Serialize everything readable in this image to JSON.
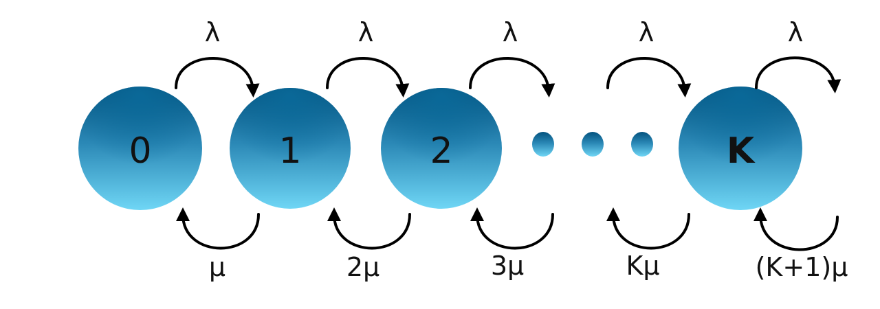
{
  "states": [
    {
      "id": "s0",
      "label": "0"
    },
    {
      "id": "s1",
      "label": "1"
    },
    {
      "id": "s2",
      "label": "2"
    },
    {
      "id": "sK",
      "label": "K"
    }
  ],
  "ellipsis": [
    "•",
    "•",
    "•"
  ],
  "arrival_rates": [
    "λ",
    "λ",
    "λ",
    "λ",
    "λ"
  ],
  "service_rates": [
    "μ",
    "2μ",
    "3μ",
    "Kμ",
    "(K+1)μ"
  ],
  "colors": {
    "node_top": "#04537f",
    "node_mid": "#2a87b5",
    "node_bottom": "#6fd6f5",
    "arrow": "#000000",
    "text": "#111111"
  }
}
